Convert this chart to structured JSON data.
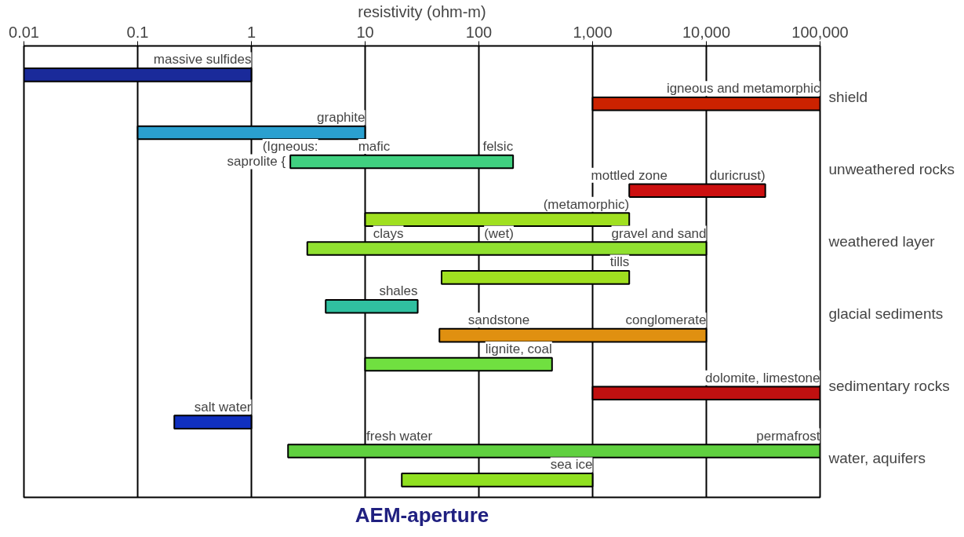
{
  "chart_data": {
    "type": "bar",
    "orientation": "horizontal",
    "log": "x",
    "xlabel": "resistivity (ohm-m)",
    "categories": [
      "massive sulfides",
      "igneous and metamorphic",
      "graphite",
      "felsic",
      "duricrust)",
      "(metamorphic)",
      "gravel and sand",
      "tills",
      "shales",
      "conglomerate",
      "lignite, coal",
      "dolomite, limestone",
      "salt water",
      "permafrost",
      "sea ice"
    ],
    "base": [
      0.01,
      1000,
      0.1,
      2.2,
      2100,
      10,
      3.1,
      47,
      4.5,
      45,
      10,
      1000,
      0.21,
      2.1,
      21
    ],
    "values": [
      0.99,
      99000,
      9.9,
      197.8,
      30900,
      2090,
      9996.9,
      2053,
      24.5,
      9955,
      430,
      99000,
      0.79,
      99997.9,
      979
    ],
    "colors": [
      "#1a2a9a",
      "#cc2200",
      "#2aa0d0",
      "#40d080",
      "#cc1010",
      "#a0e020",
      "#90e030",
      "#a0e020",
      "#30c0a0",
      "#e09010",
      "#70e040",
      "#c01010",
      "#1030c0",
      "#60d040",
      "#90e020"
    ],
    "xlim": [
      0.01,
      100000
    ],
    "xticks": [
      0.01,
      0.1,
      1,
      10,
      100,
      {
        "value": 1000,
        "label": "1,000"
      },
      {
        "value": 10000,
        "label": "10,000"
      },
      {
        "value": 100000,
        "label": "100,000"
      }
    ],
    "tick_labels": "x",
    "grid": "x",
    "annotations": [
      "saprolite {",
      {
        "text": "(Igneous:",
        "x": 2.2,
        "y": "felsic"
      },
      {
        "text": "mafic",
        "x": 12,
        "y": "felsic"
      },
      {
        "text": "mottled zone",
        "x": 2100,
        "y": "duricrust)"
      },
      {
        "text": "clays",
        "x": 16,
        "y": "gravel and sand"
      },
      {
        "text": "(wet)",
        "x": 150,
        "y": "gravel and sand"
      },
      {
        "text": "sandstone",
        "x": 150,
        "y": "conglomerate"
      },
      {
        "text": "fresh water",
        "x": 20,
        "y": "permafrost"
      },
      "shield",
      "unweathered rocks",
      "weathered layer",
      "glacial sediments",
      "sedimentary rocks",
      "water, aquifers",
      "AEM-aperture"
    ]
  }
}
